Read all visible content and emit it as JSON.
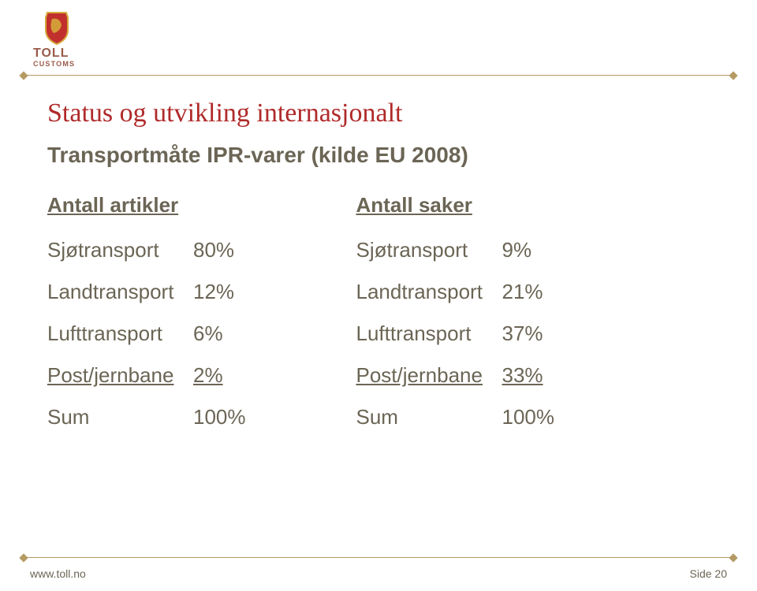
{
  "colors": {
    "title": "#b02a2a",
    "text": "#6b6555",
    "rule": "#b69a64",
    "logo_red": "#c2302e",
    "logo_gold": "#d6a93a",
    "logo_text": "#9a5a4a",
    "background": "#ffffff"
  },
  "fonts": {
    "title_family": "Georgia, Times New Roman, serif",
    "body_family": "Arial, Helvetica, sans-serif",
    "title_size_pt": 26,
    "subtitle_size_pt": 21,
    "body_size_pt": 20,
    "footer_size_pt": 11
  },
  "logo": {
    "line1": "TOLL",
    "line2": "CUSTOMS"
  },
  "title": "Status og utvikling internasjonalt",
  "subtitle": "Transportmåte IPR-varer (kilde EU 2008)",
  "columns": [
    {
      "header": "Antall artikler",
      "rows": [
        {
          "label": "Sjøtransport",
          "value": "80%",
          "underline": false
        },
        {
          "label": "Landtransport",
          "value": "12%",
          "underline": false
        },
        {
          "label": "Lufttransport",
          "value": "6%",
          "underline": false
        },
        {
          "label": "Post/jernbane",
          "value": "2%",
          "underline": true
        },
        {
          "label": "Sum",
          "value": "100%",
          "underline": false
        }
      ]
    },
    {
      "header": "Antall saker",
      "rows": [
        {
          "label": "Sjøtransport",
          "value": "9%",
          "underline": false
        },
        {
          "label": "Landtransport",
          "value": "21%",
          "underline": false
        },
        {
          "label": "Lufttransport",
          "value": "37%",
          "underline": false
        },
        {
          "label": "Post/jernbane",
          "value": "33%",
          "underline": true
        },
        {
          "label": "Sum",
          "value": "100%",
          "underline": false
        }
      ]
    }
  ],
  "footer": {
    "left": "www.toll.no",
    "right_prefix": "Side ",
    "right_page": "20"
  }
}
